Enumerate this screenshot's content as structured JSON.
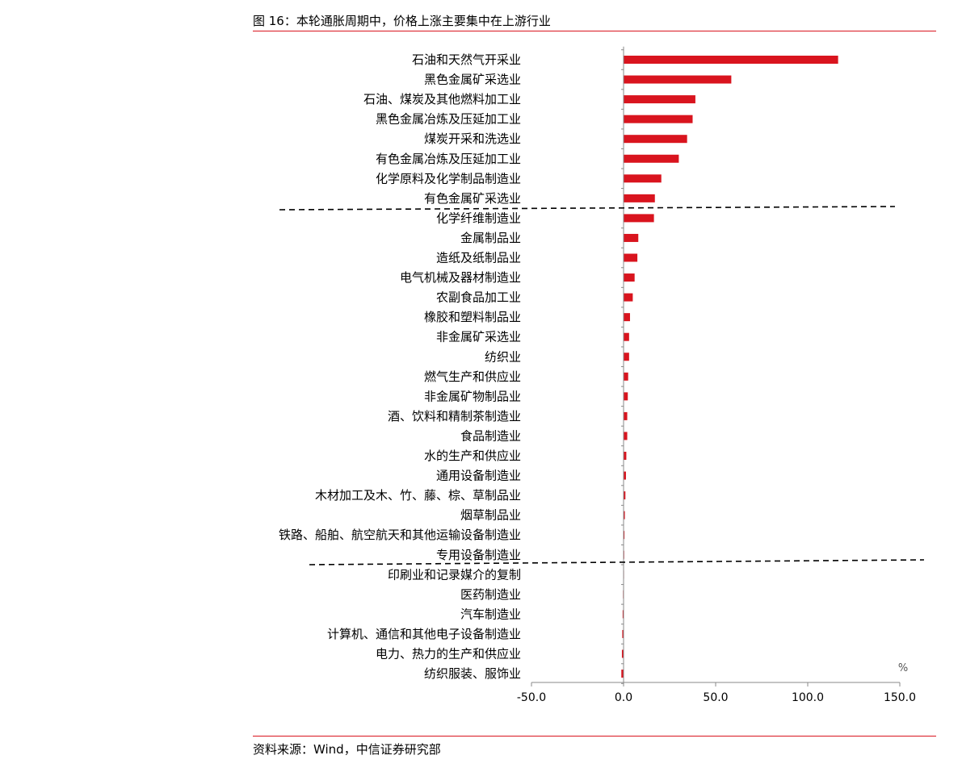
{
  "figure": {
    "title": "图 16：本轮通胀周期中，价格上涨主要集中在上游行业",
    "source": "资料来源：Wind，中信证券研究部"
  },
  "colors": {
    "accent": "#d9141e",
    "bar": "#d9141e"
  },
  "chart_data": {
    "type": "bar",
    "orientation": "horizontal",
    "categories": [
      "石油和天然气开采业",
      "黑色金属矿采选业",
      "石油、煤炭及其他燃料加工业",
      "黑色金属冶炼及压延加工业",
      "煤炭开采和洗选业",
      "有色金属冶炼及压延加工业",
      "化学原料及化学制品制造业",
      "有色金属矿采选业",
      "化学纤维制造业",
      "金属制品业",
      "造纸及纸制品业",
      "电气机械及器材制造业",
      "农副食品加工业",
      "橡胶和塑料制品业",
      "非金属矿采选业",
      "纺织业",
      "燃气生产和供应业",
      "非金属矿物制品业",
      "酒、饮料和精制茶制造业",
      "食品制造业",
      "水的生产和供应业",
      "通用设备制造业",
      "木材加工及木、竹、藤、棕、草制品业",
      "烟草制品业",
      "铁路、船舶、航空航天和其他运输设备制造业",
      "专用设备制造业",
      "印刷业和记录媒介的复制",
      "医药制造业",
      "汽车制造业",
      "计算机、通信和其他电子设备制造业",
      "电力、热力的生产和供应业",
      "纺织服装、服饰业"
    ],
    "values": [
      116.5,
      58.5,
      39.0,
      37.5,
      34.5,
      30.0,
      20.5,
      17.0,
      16.5,
      8.0,
      7.5,
      6.0,
      5.0,
      3.5,
      3.0,
      3.0,
      2.5,
      2.3,
      2.0,
      2.0,
      1.5,
      1.3,
      1.0,
      0.7,
      0.5,
      0.2,
      -0.1,
      -0.3,
      -0.5,
      -0.7,
      -0.9,
      -1.2
    ],
    "xlim": [
      -50,
      150
    ],
    "xticks": [
      "-50.0",
      "0.0",
      "50.0",
      "100.0",
      "150.0"
    ],
    "xtick_values": [
      -50,
      0,
      50,
      100,
      150
    ],
    "unit": "%",
    "grid": false,
    "legend": "none",
    "separators_after_index": [
      7,
      25
    ]
  }
}
